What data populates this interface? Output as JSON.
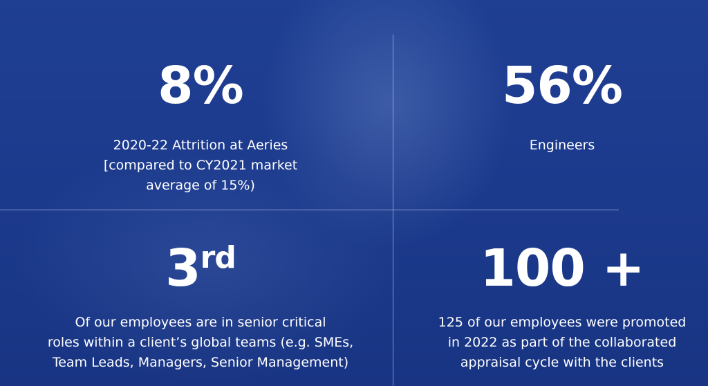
{
  "stats": [
    {
      "number": "8%",
      "lines": [
        "2020-22 Attrition at Aeries",
        "[compared to CY2021 market",
        "average of 15%)"
      ]
    },
    {
      "number": "56%",
      "lines": [
        "Engineers"
      ]
    },
    {
      "number": "3",
      "suffix": "rd",
      "lines": [
        "Of our employees are in senior critical",
        "roles  within a client’s global teams (e.g. SMEs,",
        "Team Leads, Managers, Senior Management)"
      ]
    },
    {
      "number": "100 +",
      "lines": [
        "125 of our employees were promoted",
        "in 2022 as part of the collaborated",
        "appraisal cycle with the clients"
      ]
    }
  ]
}
